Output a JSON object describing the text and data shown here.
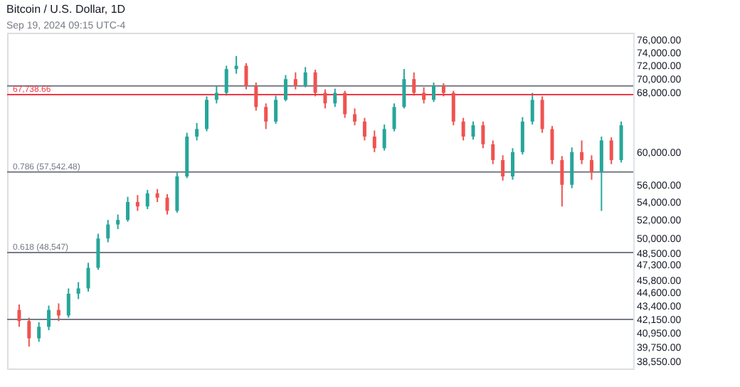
{
  "chart_data": {
    "type": "candlestick",
    "title": "Bitcoin / U.S. Dollar, 1D",
    "annotations": [
      "Sep 19, 2024 09:15 UTC-4"
    ],
    "categories": [
      null,
      null,
      null,
      null,
      null,
      null,
      null,
      null,
      null,
      null,
      null,
      null,
      null,
      null,
      null,
      null,
      null,
      null,
      null,
      null,
      null,
      null,
      null,
      null,
      null,
      null,
      null,
      null,
      null,
      null,
      null,
      null,
      null,
      null,
      null,
      null,
      null,
      null,
      null,
      null,
      null,
      null,
      null,
      null,
      null,
      null,
      null,
      null,
      null,
      null,
      null,
      null,
      null,
      null,
      null,
      null,
      null,
      null,
      null,
      null,
      null,
      null
    ],
    "ohlc": [
      [
        43000,
        43500,
        41500,
        42000
      ],
      [
        42000,
        42300,
        39800,
        40500
      ],
      [
        40500,
        41900,
        40200,
        41500
      ],
      [
        41500,
        43400,
        41200,
        43000
      ],
      [
        43000,
        43600,
        42000,
        42500
      ],
      [
        42500,
        45000,
        42300,
        44500
      ],
      [
        44500,
        45600,
        44000,
        45000
      ],
      [
        45000,
        47500,
        44700,
        47000
      ],
      [
        47000,
        50500,
        46800,
        50000
      ],
      [
        50000,
        52000,
        49600,
        51500
      ],
      [
        51500,
        52600,
        51000,
        52000
      ],
      [
        52000,
        54600,
        51800,
        54000
      ],
      [
        54000,
        54800,
        53000,
        53500
      ],
      [
        53500,
        55400,
        53200,
        55000
      ],
      [
        55000,
        55500,
        54000,
        54500
      ],
      [
        54500,
        54900,
        52600,
        53000
      ],
      [
        53000,
        57500,
        52800,
        57000
      ],
      [
        57000,
        62500,
        56800,
        62000
      ],
      [
        62000,
        63800,
        61500,
        63000
      ],
      [
        63000,
        67500,
        62700,
        67000
      ],
      [
        67000,
        69000,
        66500,
        68000
      ],
      [
        68000,
        72000,
        67600,
        71500
      ],
      [
        71500,
        73500,
        70800,
        72000
      ],
      [
        72000,
        72400,
        68500,
        69000
      ],
      [
        69000,
        69500,
        65500,
        66000
      ],
      [
        66000,
        66500,
        63000,
        64000
      ],
      [
        64000,
        67600,
        63700,
        67000
      ],
      [
        67000,
        70600,
        66800,
        70000
      ],
      [
        70000,
        71000,
        68500,
        69000
      ],
      [
        69000,
        71800,
        68800,
        71000
      ],
      [
        71000,
        71400,
        67500,
        68000
      ],
      [
        68000,
        68500,
        65800,
        66500
      ],
      [
        66500,
        68600,
        66000,
        68000
      ],
      [
        68000,
        68300,
        64500,
        65000
      ],
      [
        65000,
        65800,
        63500,
        64000
      ],
      [
        64000,
        64500,
        61500,
        62000
      ],
      [
        62000,
        62800,
        60000,
        60500
      ],
      [
        60500,
        63600,
        60200,
        63000
      ],
      [
        63000,
        66500,
        62700,
        66000
      ],
      [
        66000,
        71500,
        65800,
        70000
      ],
      [
        70000,
        71000,
        67600,
        68000
      ],
      [
        68000,
        68800,
        66500,
        67000
      ],
      [
        67000,
        69500,
        66700,
        69000
      ],
      [
        69000,
        69400,
        67500,
        68000
      ],
      [
        68000,
        68300,
        63500,
        64000
      ],
      [
        64000,
        64500,
        61500,
        62000
      ],
      [
        62000,
        64000,
        61600,
        63500
      ],
      [
        63500,
        64000,
        60500,
        61000
      ],
      [
        61000,
        61500,
        58500,
        59000
      ],
      [
        59000,
        59600,
        56500,
        57000
      ],
      [
        57000,
        60500,
        56600,
        60000
      ],
      [
        60000,
        64600,
        59700,
        64000
      ],
      [
        64000,
        68000,
        63600,
        67000
      ],
      [
        67000,
        67500,
        62500,
        63000
      ],
      [
        63000,
        63400,
        58500,
        59000
      ],
      [
        59000,
        59500,
        53500,
        56000
      ],
      [
        56000,
        60600,
        55600,
        60000
      ],
      [
        60000,
        61500,
        58500,
        59000
      ],
      [
        59000,
        59600,
        56600,
        57500
      ],
      [
        57500,
        62000,
        53000,
        61500
      ],
      [
        61500,
        61900,
        58500,
        59000
      ],
      [
        59000,
        64000,
        58700,
        63500
      ]
    ],
    "colors": [
      "#ef5350",
      "#ef5350",
      "#26a69a",
      "#26a69a",
      "#ef5350",
      "#26a69a",
      "#26a69a",
      "#26a69a",
      "#26a69a",
      "#26a69a",
      "#26a69a",
      "#26a69a",
      "#ef5350",
      "#26a69a",
      "#ef5350",
      "#ef5350",
      "#26a69a",
      "#26a69a",
      "#26a69a",
      "#26a69a",
      "#26a69a",
      "#26a69a",
      "#26a69a",
      "#ef5350",
      "#ef5350",
      "#ef5350",
      "#26a69a",
      "#26a69a",
      "#ef5350",
      "#26a69a",
      "#ef5350",
      "#ef5350",
      "#26a69a",
      "#ef5350",
      "#ef5350",
      "#ef5350",
      "#ef5350",
      "#26a69a",
      "#26a69a",
      "#26a69a",
      "#ef5350",
      "#ef5350",
      "#26a69a",
      "#ef5350",
      "#ef5350",
      "#ef5350",
      "#26a69a",
      "#ef5350",
      "#ef5350",
      "#ef5350",
      "#26a69a",
      "#26a69a",
      "#26a69a",
      "#ef5350",
      "#ef5350",
      "#ef5350",
      "#26a69a",
      "#ef5350",
      "#ef5350",
      "#26a69a",
      "#ef5350",
      "#26a69a"
    ],
    "log": true,
    "ylim": [
      38000,
      77200
    ],
    "yticks": [
      {
        "value": 76000,
        "label": "76,000.00"
      },
      {
        "value": 74000,
        "label": "74,000.00"
      },
      {
        "value": 72000,
        "label": "72,000.00"
      },
      {
        "value": 70000,
        "label": "70,000.00"
      },
      {
        "value": 68000,
        "label": "68,000.00"
      },
      {
        "value": 60000,
        "label": "60,000.00"
      },
      {
        "value": 56000,
        "label": "56,000.00"
      },
      {
        "value": 54000,
        "label": "54,000.00"
      },
      {
        "value": 52000,
        "label": "52,000.00"
      },
      {
        "value": 50000,
        "label": "50,000.00"
      },
      {
        "value": 48500,
        "label": "48,500.00"
      },
      {
        "value": 47300,
        "label": "47,300.00"
      },
      {
        "value": 45800,
        "label": "45,800.00"
      },
      {
        "value": 44600,
        "label": "44,600.00"
      },
      {
        "value": 43400,
        "label": "43,400.00"
      },
      {
        "value": 42150,
        "label": "42,150.00"
      },
      {
        "value": 40950,
        "label": "40,950.00"
      },
      {
        "value": 39750,
        "label": "39,750.00"
      },
      {
        "value": 38550,
        "label": "38,550.00"
      }
    ],
    "tick_labels": "y",
    "grid": false,
    "ref_lines": [
      {
        "axis": "y",
        "value": 69000,
        "label": null,
        "color": "#787b86"
      },
      {
        "axis": "y",
        "value": 67738.66,
        "label": "67,738.66",
        "color": "#f23645"
      },
      {
        "axis": "y",
        "value": 57542.48,
        "label": "0.786 (57,542.48)",
        "color": "#787b86"
      },
      {
        "axis": "y",
        "value": 48547,
        "label": "0.618 (48,547)",
        "color": "#787b86"
      },
      {
        "axis": "y",
        "value": 42150,
        "label": null,
        "color": "#787b86"
      }
    ]
  }
}
